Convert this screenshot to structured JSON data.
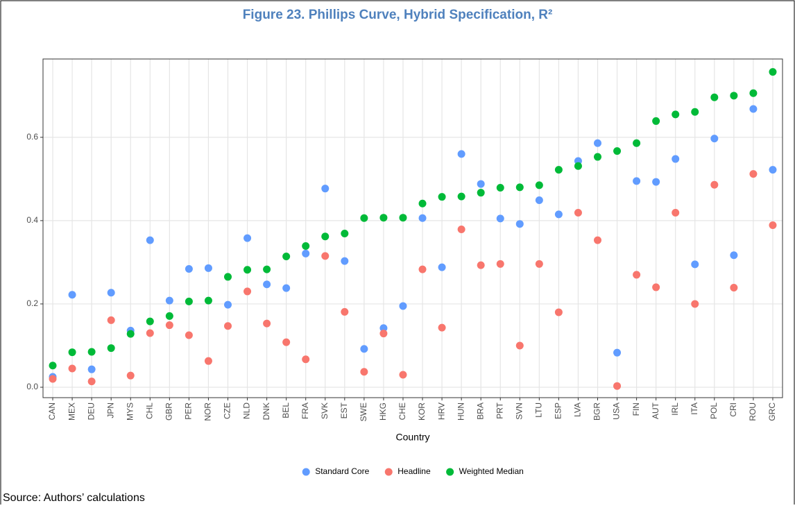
{
  "chart_data": {
    "type": "scatter",
    "title": "Figure 23. Phillips Curve, Hybrid Specification, R²",
    "x_label": "Country",
    "source": "Source: Authors’ calculations",
    "categories": [
      "CAN",
      "MEX",
      "DEU",
      "JPN",
      "MYS",
      "CHL",
      "GBR",
      "PER",
      "NOR",
      "CZE",
      "NLD",
      "DNK",
      "BEL",
      "FRA",
      "SVK",
      "EST",
      "SWE",
      "HKG",
      "CHE",
      "KOR",
      "HRV",
      "HUN",
      "BRA",
      "PRT",
      "SVN",
      "LTU",
      "ESP",
      "LVA",
      "BGR",
      "USA",
      "FIN",
      "AUT",
      "IRL",
      "ITA",
      "POL",
      "CRI",
      "ROU",
      "GRC"
    ],
    "series": [
      {
        "name": "Standard Core",
        "color": "#619cff",
        "values": [
          0.025,
          0.222,
          0.043,
          0.227,
          0.136,
          0.353,
          0.208,
          0.284,
          0.286,
          0.198,
          0.358,
          0.247,
          0.238,
          0.321,
          0.477,
          0.303,
          0.092,
          0.142,
          0.195,
          0.406,
          0.288,
          0.56,
          0.488,
          0.405,
          0.392,
          0.449,
          0.415,
          0.543,
          0.586,
          0.083,
          0.495,
          0.493,
          0.548,
          0.295,
          0.597,
          0.317,
          0.668,
          0.522
        ]
      },
      {
        "name": "Headline",
        "color": "#f8766d",
        "values": [
          0.02,
          0.045,
          0.014,
          0.161,
          0.028,
          0.13,
          0.149,
          0.125,
          0.063,
          0.147,
          0.23,
          0.153,
          0.108,
          0.067,
          0.315,
          0.181,
          0.037,
          0.129,
          0.03,
          0.283,
          0.143,
          0.379,
          0.293,
          0.296,
          0.1,
          0.296,
          0.18,
          0.419,
          0.353,
          0.003,
          0.27,
          0.24,
          0.419,
          0.2,
          0.486,
          0.239,
          0.512,
          0.389
        ]
      },
      {
        "name": "Weighted Median",
        "color": "#00ba38",
        "values": [
          0.052,
          0.084,
          0.085,
          0.094,
          0.128,
          0.158,
          0.171,
          0.206,
          0.208,
          0.265,
          0.282,
          0.283,
          0.314,
          0.339,
          0.362,
          0.369,
          0.406,
          0.407,
          0.407,
          0.441,
          0.457,
          0.458,
          0.467,
          0.479,
          0.48,
          0.485,
          0.522,
          0.531,
          0.553,
          0.567,
          0.586,
          0.639,
          0.655,
          0.661,
          0.696,
          0.7,
          0.706,
          0.757
        ]
      }
    ],
    "ylim": [
      -0.025,
      0.788
    ],
    "yticks": [
      {
        "value": 0,
        "label": "0.0"
      },
      0.2,
      0.4,
      0.6
    ],
    "grid": true,
    "legend": "bottom"
  }
}
